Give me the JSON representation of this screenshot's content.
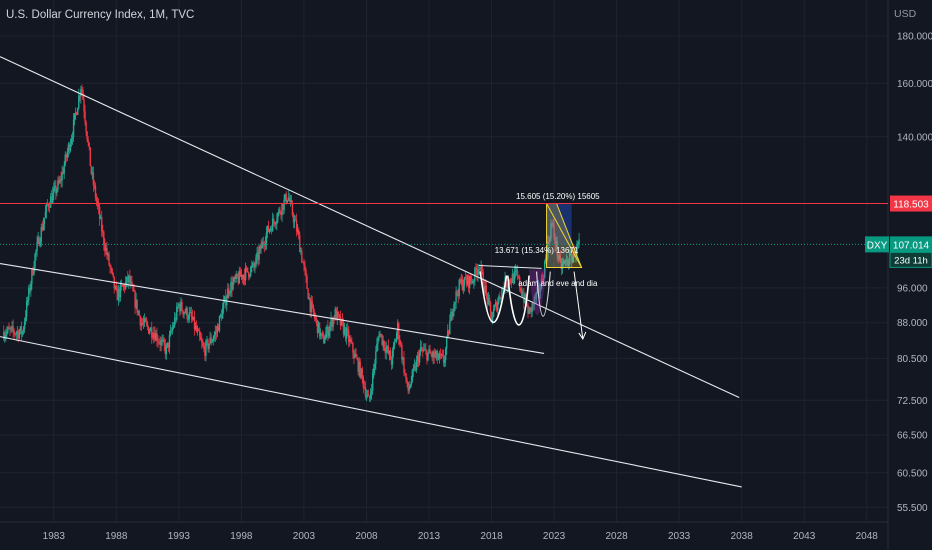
{
  "header": {
    "symbol_title": "U.S. Dollar Currency Index, 1M, TVC",
    "currency": "USD"
  },
  "chart_data": {
    "type": "candlestick",
    "title": "U.S. Dollar Currency Index, 1M, TVC",
    "y_scale": "log",
    "ylim": [
      53.5,
      197
    ],
    "xlim": [
      1978.7,
      2049.7
    ],
    "y_ticks": [
      "180.000",
      "160.000",
      "140.000",
      "96.000",
      "88.000",
      "80.500",
      "72.500",
      "66.500",
      "60.500",
      "55.500"
    ],
    "x_ticks": [
      "1983",
      "1988",
      "1993",
      "1998",
      "2003",
      "2008",
      "2013",
      "2018",
      "2023",
      "2028",
      "2033",
      "2038",
      "2043",
      "2048"
    ],
    "series": [
      {
        "points": [
          [
            1979.0,
            86
          ],
          [
            1980.5,
            86
          ],
          [
            1981.5,
            104
          ],
          [
            1982.5,
            118
          ],
          [
            1983.5,
            125
          ],
          [
            1984.5,
            142
          ],
          [
            1985.2,
            160
          ],
          [
            1986.0,
            128
          ],
          [
            1987.0,
            108
          ],
          [
            1988.0,
            94
          ],
          [
            1989.0,
            98
          ],
          [
            1990.0,
            88
          ],
          [
            1991.0,
            86
          ],
          [
            1992.0,
            82
          ],
          [
            1993.0,
            92
          ],
          [
            1994.0,
            89
          ],
          [
            1995.0,
            82
          ],
          [
            1996.0,
            86
          ],
          [
            1997.0,
            96
          ],
          [
            1998.0,
            99
          ],
          [
            1999.0,
            101
          ],
          [
            2000.0,
            110
          ],
          [
            2001.0,
            116
          ],
          [
            2001.7,
            121
          ],
          [
            2002.5,
            110
          ],
          [
            2003.5,
            92
          ],
          [
            2004.5,
            84
          ],
          [
            2005.5,
            90
          ],
          [
            2006.5,
            85
          ],
          [
            2007.5,
            78
          ],
          [
            2008.2,
            72
          ],
          [
            2009.0,
            86
          ],
          [
            2010.0,
            80
          ],
          [
            2010.5,
            87
          ],
          [
            2011.3,
            74
          ],
          [
            2012.3,
            82
          ],
          [
            2013.3,
            81
          ],
          [
            2014.2,
            80
          ],
          [
            2014.9,
            92
          ],
          [
            2015.5,
            97
          ],
          [
            2016.5,
            98
          ],
          [
            2017.0,
            102
          ],
          [
            2018.0,
            89
          ],
          [
            2019.0,
            97
          ],
          [
            2020.0,
            99
          ],
          [
            2021.0,
            90
          ],
          [
            2022.0,
            97
          ],
          [
            2022.8,
            113
          ],
          [
            2023.5,
            101
          ],
          [
            2024.5,
            104
          ],
          [
            2025.0,
            107
          ]
        ]
      }
    ],
    "price_lines": [
      {
        "label": "118.503",
        "value": 118.503,
        "color": "#f23645"
      },
      {
        "label": "DXY",
        "value": 107.014,
        "color": "#089981",
        "price": "107.014",
        "countdown": "23d 11h"
      }
    ],
    "annotations": {
      "measure_upper": "15.605 (15.20%) 15605",
      "measure_lower": "13.671 (15.34%) 13671",
      "pattern_label": "adam and eve and dia"
    },
    "trendlines": [
      {
        "from": [
          1978.7,
          171
        ],
        "to": [
          2037.8,
          73
        ]
      },
      {
        "from": [
          1978.7,
          102
        ],
        "to": [
          2022.2,
          81.5
        ]
      },
      {
        "from": [
          1978.7,
          85
        ],
        "to": [
          2038.0,
          58.4
        ]
      }
    ],
    "colors": {
      "up": "#22ab94",
      "down": "#f23645",
      "background": "#131722",
      "grid": "#1f2330"
    }
  }
}
